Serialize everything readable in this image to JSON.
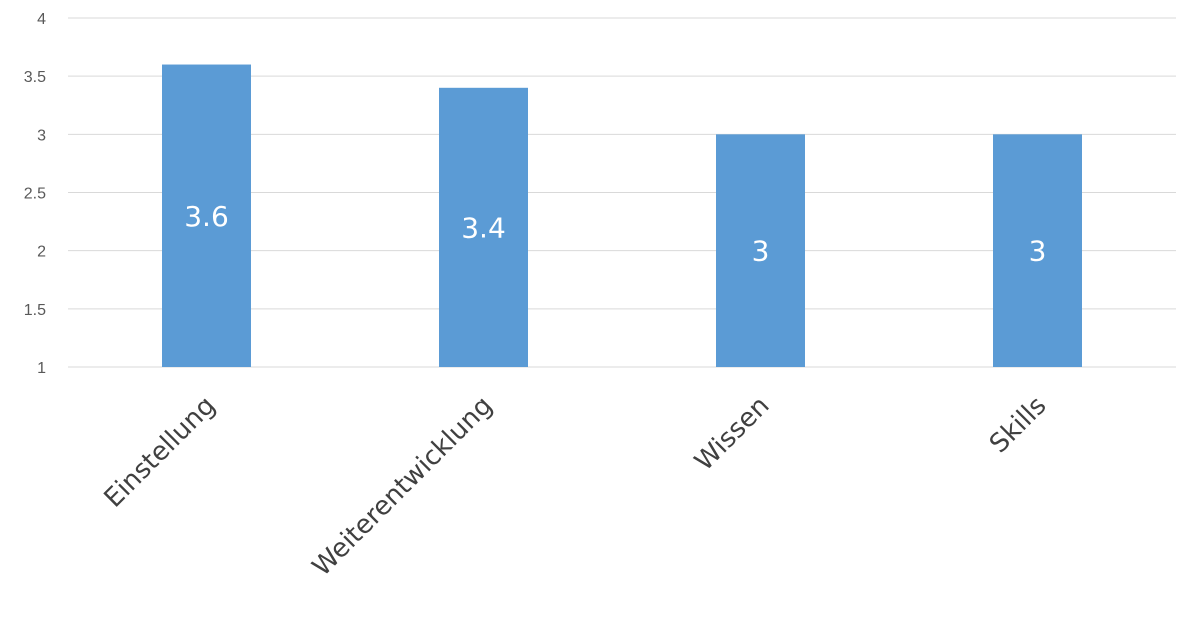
{
  "chart_data": {
    "type": "bar",
    "title": "",
    "xlabel": "",
    "ylabel": "",
    "categories": [
      "Einstellung",
      "Weiterentwicklung",
      "Wissen",
      "Skills"
    ],
    "values": [
      3.6,
      3.4,
      3,
      3
    ],
    "data_labels": [
      "3.6",
      "3.4",
      "3",
      "3"
    ],
    "ylim": [
      1,
      4
    ],
    "yticks": [
      1,
      1.5,
      2,
      2.5,
      3,
      3.5,
      4
    ],
    "ytick_labels": [
      "1",
      "1.5",
      "2",
      "2.5",
      "3",
      "3.5",
      "4"
    ],
    "grid": true,
    "legend": "none",
    "colors": {
      "bar": "#5b9bd5",
      "grid": "#d9d9d9",
      "tick_text": "#595959",
      "category_text": "#404040",
      "data_label_text": "#ffffff"
    }
  }
}
